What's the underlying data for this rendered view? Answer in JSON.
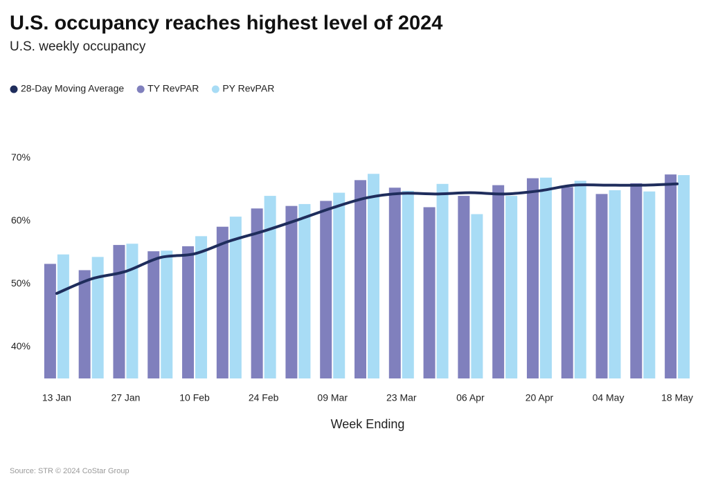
{
  "chart_data": {
    "type": "bar-line",
    "title": "U.S. occupancy reaches highest level of 2024",
    "subtitle": "U.S. weekly occupancy",
    "x_label": "Week Ending",
    "source": "Source: STR © 2024 CoStar Group",
    "categories": [
      "13 Jan",
      null,
      "27 Jan",
      null,
      "10 Feb",
      null,
      "24 Feb",
      null,
      "09 Mar",
      null,
      "23 Mar",
      null,
      "06 Apr",
      null,
      "20 Apr",
      null,
      "04 May",
      null,
      "18 May"
    ],
    "series": [
      {
        "name": "28-Day Moving Average",
        "type": "line",
        "color": "#1f2d5c",
        "values": [
          48.5,
          50.8,
          52.0,
          54.2,
          54.8,
          56.8,
          58.4,
          60.2,
          62.1,
          63.7,
          64.4,
          64.3,
          64.5,
          64.3,
          64.8,
          65.7,
          65.7,
          65.7,
          65.9
        ]
      },
      {
        "name": "TY RevPAR",
        "type": "bar",
        "color": "#8080bd",
        "values": [
          53.2,
          52.2,
          56.2,
          55.2,
          56.0,
          59.1,
          62.0,
          62.4,
          63.2,
          66.5,
          65.3,
          62.2,
          64.0,
          65.7,
          66.8,
          65.4,
          64.3,
          66.0,
          67.4
        ]
      },
      {
        "name": "PY RevPAR",
        "type": "bar",
        "color": "#a8dcf5",
        "values": [
          54.7,
          54.3,
          56.4,
          55.3,
          57.6,
          60.7,
          64.0,
          62.7,
          64.5,
          67.5,
          64.8,
          65.9,
          61.1,
          64.0,
          66.9,
          66.4,
          64.9,
          64.7,
          67.3
        ]
      }
    ],
    "ylim": [
      35,
      72
    ],
    "yticks": [
      {
        "value": 40,
        "label": "40%"
      },
      {
        "value": 50,
        "label": "50%"
      },
      {
        "value": 60,
        "label": "60%"
      },
      {
        "value": 70,
        "label": "70%"
      }
    ],
    "grid": false,
    "legend": "top-left"
  }
}
